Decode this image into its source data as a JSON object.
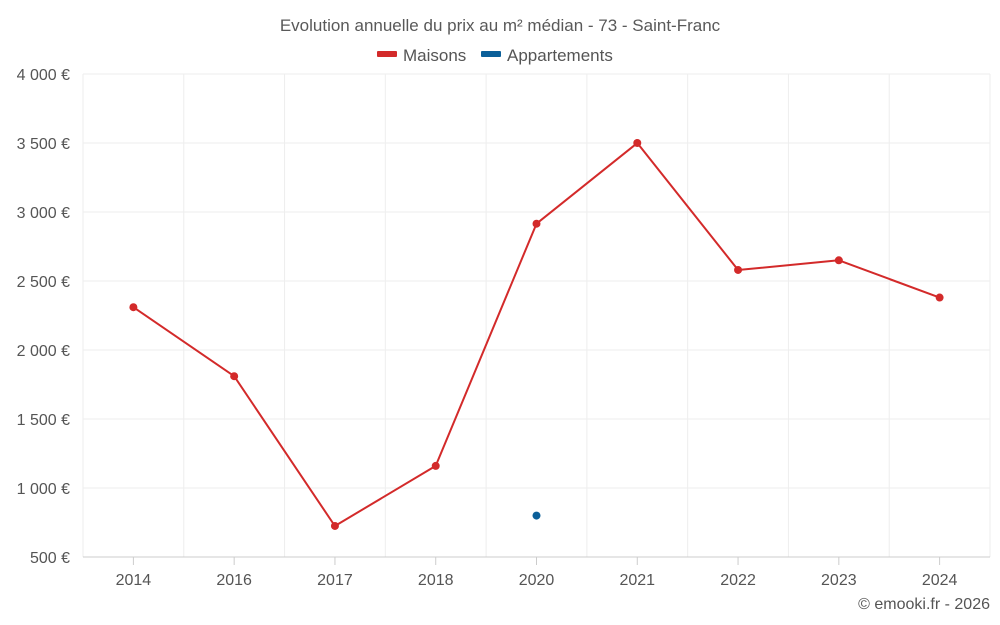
{
  "chart_data": {
    "type": "line",
    "title": "Evolution annuelle du prix au m² médian - 73 - Saint-Franc",
    "categories": [
      "2014",
      "2016",
      "2017",
      "2018",
      "2020",
      "2021",
      "2022",
      "2023",
      "2024"
    ],
    "series": [
      {
        "name": "Maisons",
        "color": "#d32a2a",
        "values": [
          2310,
          1810,
          725,
          1160,
          2915,
          3500,
          2580,
          2650,
          2380
        ]
      },
      {
        "name": "Appartements",
        "color": "#0b5f99",
        "values": [
          null,
          null,
          null,
          null,
          800,
          null,
          null,
          null,
          null
        ]
      }
    ],
    "y_ticks": [
      {
        "value": 500,
        "label": "500 €"
      },
      {
        "value": 1000,
        "label": "1 000 €"
      },
      {
        "value": 1500,
        "label": "1 500 €"
      },
      {
        "value": 2000,
        "label": "2 000 €"
      },
      {
        "value": 2500,
        "label": "2 500 €"
      },
      {
        "value": 3000,
        "label": "3 000 €"
      },
      {
        "value": 3500,
        "label": "3 500 €"
      },
      {
        "value": 4000,
        "label": "4 000 €"
      }
    ],
    "ylim": [
      500,
      4000
    ],
    "xlabel": "",
    "ylabel": "",
    "grid": true,
    "legend_position": "top-center",
    "credit": "© emooki.fr - 2026"
  }
}
